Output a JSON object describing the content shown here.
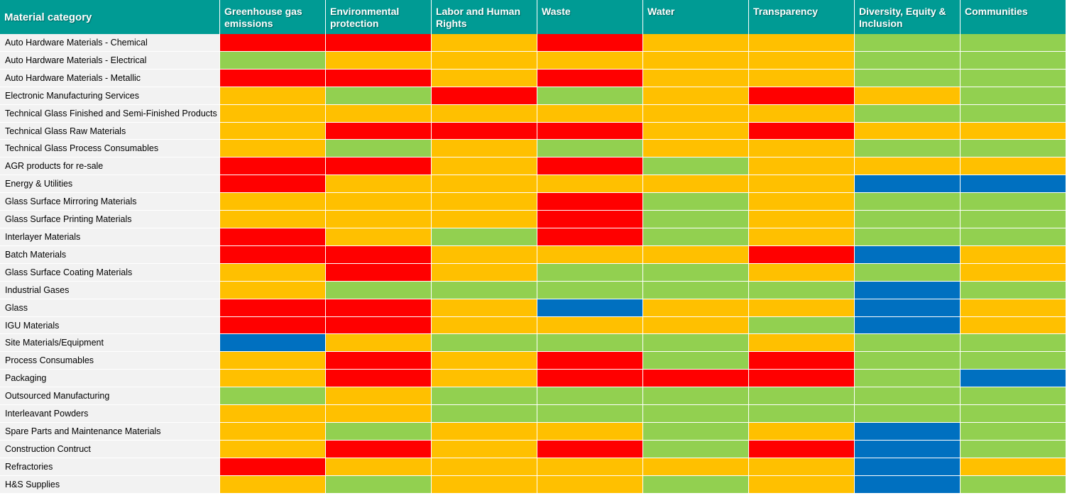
{
  "chart_data": {
    "type": "heatmap",
    "columns": [
      "Material category",
      "Greenhouse gas emissions",
      "Environmental protection",
      "Labor and Human Rights",
      "Waste",
      "Water",
      "Transparency",
      "Diversity, Equity & Inclusion",
      "Communities"
    ],
    "levels": {
      "R": "#ff0000",
      "A": "#ffc000",
      "G": "#92d050",
      "B": "#0070c0"
    },
    "rows": [
      {
        "label": "Auto Hardware Materials - Chemical",
        "values": [
          "R",
          "R",
          "A",
          "R",
          "A",
          "A",
          "G",
          "G"
        ]
      },
      {
        "label": "Auto Hardware Materials - Electrical",
        "values": [
          "G",
          "A",
          "A",
          "A",
          "A",
          "A",
          "G",
          "G"
        ]
      },
      {
        "label": "Auto Hardware Materials - Metallic",
        "values": [
          "R",
          "R",
          "A",
          "R",
          "A",
          "A",
          "G",
          "G"
        ]
      },
      {
        "label": "Electronic Manufacturing Services",
        "values": [
          "A",
          "G",
          "R",
          "G",
          "A",
          "R",
          "A",
          "G"
        ]
      },
      {
        "label": "Technical Glass Finished and Semi-Finished Products",
        "values": [
          "A",
          "A",
          "A",
          "A",
          "A",
          "A",
          "G",
          "G"
        ]
      },
      {
        "label": "Technical Glass Raw Materials",
        "values": [
          "A",
          "R",
          "R",
          "R",
          "A",
          "R",
          "A",
          "A"
        ]
      },
      {
        "label": "Technical Glass Process Consumables",
        "values": [
          "A",
          "G",
          "A",
          "G",
          "A",
          "A",
          "G",
          "G"
        ]
      },
      {
        "label": "AGR products for re-sale",
        "values": [
          "R",
          "R",
          "A",
          "R",
          "G",
          "A",
          "A",
          "A"
        ]
      },
      {
        "label": "Energy & Utilities",
        "values": [
          "R",
          "A",
          "A",
          "A",
          "A",
          "A",
          "B",
          "B"
        ]
      },
      {
        "label": "Glass Surface Mirroring Materials",
        "values": [
          "A",
          "A",
          "A",
          "R",
          "G",
          "A",
          "G",
          "G"
        ]
      },
      {
        "label": "Glass Surface Printing Materials",
        "values": [
          "A",
          "A",
          "A",
          "R",
          "G",
          "A",
          "G",
          "G"
        ]
      },
      {
        "label": "Interlayer Materials",
        "values": [
          "R",
          "A",
          "G",
          "R",
          "G",
          "A",
          "G",
          "G"
        ]
      },
      {
        "label": "Batch Materials",
        "values": [
          "R",
          "R",
          "A",
          "A",
          "A",
          "R",
          "B",
          "A"
        ]
      },
      {
        "label": "Glass Surface Coating Materials",
        "values": [
          "A",
          "R",
          "A",
          "G",
          "G",
          "A",
          "G",
          "A"
        ]
      },
      {
        "label": "Industrial Gases",
        "values": [
          "A",
          "G",
          "G",
          "G",
          "G",
          "G",
          "B",
          "G"
        ]
      },
      {
        "label": "Glass",
        "values": [
          "R",
          "R",
          "A",
          "B",
          "A",
          "A",
          "B",
          "A"
        ]
      },
      {
        "label": "IGU Materials",
        "values": [
          "R",
          "R",
          "A",
          "A",
          "A",
          "G",
          "B",
          "A"
        ]
      },
      {
        "label": "Site Materials/Equipment",
        "values": [
          "B",
          "A",
          "G",
          "G",
          "G",
          "A",
          "G",
          "G"
        ]
      },
      {
        "label": "Process Consumables",
        "values": [
          "A",
          "R",
          "A",
          "R",
          "G",
          "R",
          "G",
          "G"
        ]
      },
      {
        "label": "Packaging",
        "values": [
          "A",
          "R",
          "A",
          "R",
          "R",
          "R",
          "G",
          "B"
        ]
      },
      {
        "label": "Outsourced Manufacturing",
        "values": [
          "G",
          "A",
          "G",
          "G",
          "G",
          "G",
          "G",
          "G"
        ]
      },
      {
        "label": "Interleavant Powders",
        "values": [
          "A",
          "A",
          "G",
          "G",
          "G",
          "G",
          "G",
          "G"
        ]
      },
      {
        "label": "Spare Parts and Maintenance Materials",
        "values": [
          "A",
          "G",
          "A",
          "A",
          "G",
          "A",
          "B",
          "G"
        ]
      },
      {
        "label": "Construction Contruct",
        "values": [
          "A",
          "R",
          "A",
          "R",
          "G",
          "R",
          "B",
          "G"
        ]
      },
      {
        "label": "Refractories",
        "values": [
          "R",
          "A",
          "A",
          "A",
          "A",
          "A",
          "B",
          "A"
        ]
      },
      {
        "label": "H&S Supplies",
        "values": [
          "A",
          "G",
          "A",
          "A",
          "G",
          "A",
          "B",
          "G"
        ]
      }
    ]
  }
}
